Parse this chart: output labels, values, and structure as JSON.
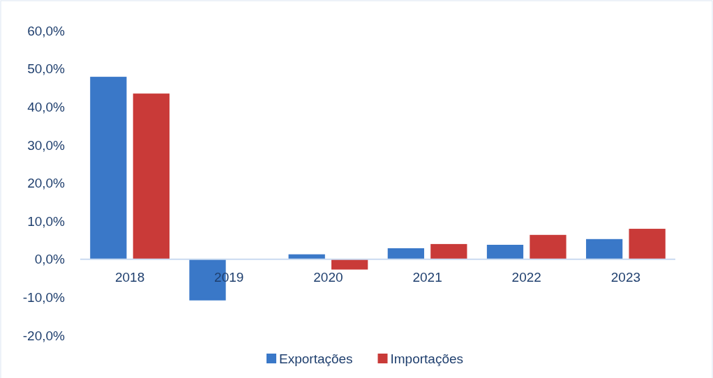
{
  "chart_data": {
    "type": "bar",
    "categories": [
      "2018",
      "2019",
      "2020",
      "2021",
      "2022",
      "2023"
    ],
    "series": [
      {
        "name": "Exportações",
        "color": "#3a78c8",
        "values": [
          47.9,
          -10.8,
          1.3,
          2.9,
          3.8,
          5.3
        ]
      },
      {
        "name": "Importações",
        "color": "#c93a38",
        "values": [
          43.5,
          0,
          -2.7,
          4.0,
          6.4,
          8.0
        ]
      }
    ],
    "ylim": [
      -20,
      60
    ],
    "yticks": [
      {
        "value": -20,
        "label": "-20,0%"
      },
      {
        "value": -10,
        "label": "-10,0%"
      },
      {
        "value": 0,
        "label": "0,0%"
      },
      {
        "value": 10,
        "label": "10,0%"
      },
      {
        "value": 20,
        "label": "20,0%"
      },
      {
        "value": 30,
        "label": "30,0%"
      },
      {
        "value": 40,
        "label": "40,0%"
      },
      {
        "value": 50,
        "label": "50,0%"
      },
      {
        "value": 60,
        "label": "60,0%"
      }
    ],
    "grid": false,
    "legend": "bottom"
  }
}
